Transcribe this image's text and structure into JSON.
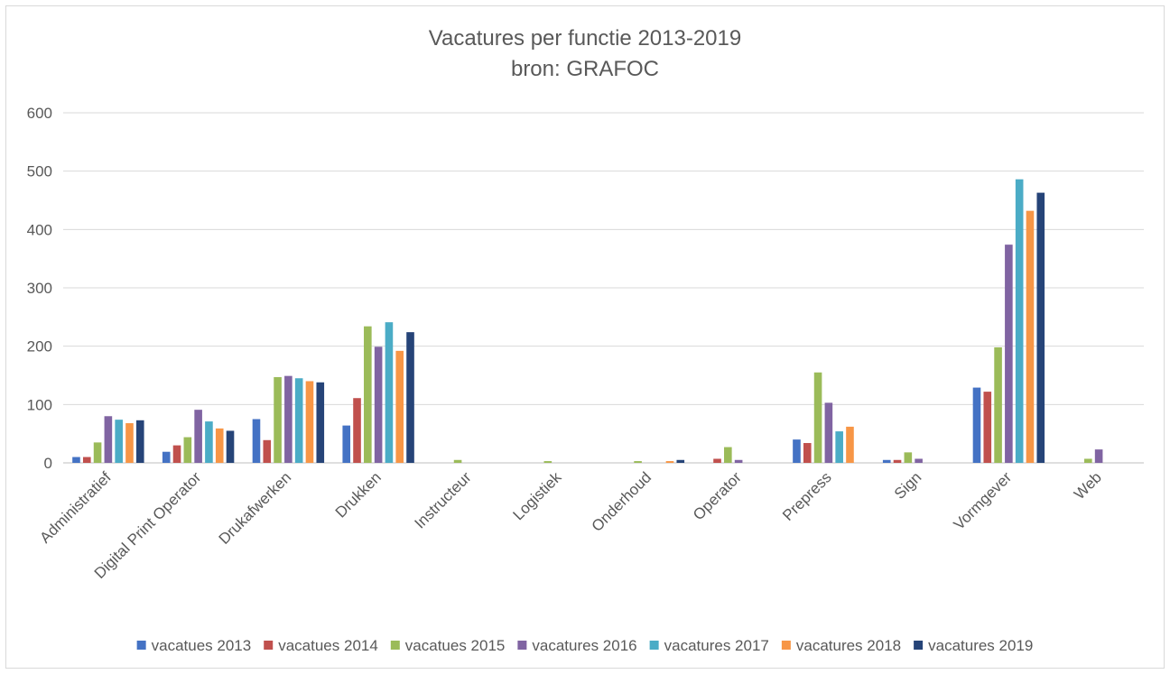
{
  "chart_data": {
    "type": "bar",
    "title": "Vacatures per functie 2013-2019",
    "subtitle": "bron: GRAFOC",
    "xlabel": "",
    "ylabel": "",
    "ylim": [
      0,
      600
    ],
    "yticks": [
      "0",
      "100",
      "200",
      "300",
      "400",
      "500",
      "600"
    ],
    "grid": true,
    "legend_position": "bottom",
    "categories": [
      "Administratief",
      "Digital Print Operator",
      "Drukafwerken",
      "Drukken",
      "Instructeur",
      "Logistiek",
      "Onderhoud",
      "Operator",
      "Prepress",
      "Sign",
      "Vormgever",
      "Web"
    ],
    "series": [
      {
        "name": "vacatues 2013",
        "color": "#4472C4",
        "values": [
          10,
          19,
          75,
          64,
          0,
          0,
          0,
          0,
          40,
          5,
          129,
          0
        ]
      },
      {
        "name": "vacatues 2014",
        "color": "#C0504D",
        "values": [
          10,
          30,
          39,
          111,
          0,
          0,
          0,
          7,
          34,
          5,
          122,
          0
        ]
      },
      {
        "name": "vacatues 2015",
        "color": "#9BBB59",
        "values": [
          35,
          44,
          147,
          234,
          5,
          3,
          3,
          27,
          155,
          18,
          198,
          7
        ]
      },
      {
        "name": "vacatures 2016",
        "color": "#8064A2",
        "values": [
          80,
          91,
          149,
          199,
          0,
          0,
          0,
          5,
          103,
          7,
          374,
          23
        ]
      },
      {
        "name": "vacatures 2017",
        "color": "#4BACC6",
        "values": [
          74,
          71,
          145,
          241,
          0,
          0,
          0,
          0,
          54,
          0,
          486,
          0
        ]
      },
      {
        "name": "vacatures 2018",
        "color": "#F79646",
        "values": [
          68,
          59,
          140,
          192,
          0,
          0,
          3,
          0,
          62,
          0,
          432,
          0
        ]
      },
      {
        "name": "vacatures 2019",
        "color": "#264478",
        "values": [
          73,
          55,
          138,
          224,
          0,
          0,
          5,
          0,
          0,
          0,
          463,
          0
        ]
      }
    ]
  }
}
